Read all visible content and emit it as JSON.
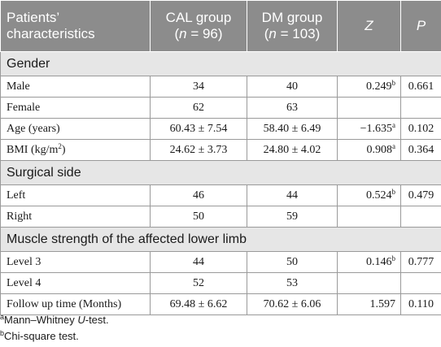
{
  "header": {
    "characteristics": "Patients’ characteristics",
    "cal_group": "CAL group",
    "cal_n_prefix": "(",
    "cal_n_var": "n",
    "cal_n_value": " = 96)",
    "dm_group": "DM group",
    "dm_n_prefix": "(",
    "dm_n_var": "n",
    "dm_n_value": " = 103)",
    "z": "Z",
    "p": "P"
  },
  "sections": {
    "gender": "Gender",
    "surgical_side": "Surgical side",
    "muscle_strength": "Muscle strength of the affected lower limb"
  },
  "rows": {
    "male": {
      "label": "Male",
      "cal": "34",
      "dm": "40",
      "z": "0.249",
      "z_sup": "b",
      "p": "0.661"
    },
    "female": {
      "label": "Female",
      "cal": "62",
      "dm": "63",
      "z": "",
      "z_sup": "",
      "p": ""
    },
    "age": {
      "label": "Age (years)",
      "cal": "60.43 ± 7.54",
      "dm": "58.40 ± 6.49",
      "z": "−1.635",
      "z_sup": "a",
      "p": "0.102"
    },
    "bmi": {
      "label_main": "BMI (kg/m",
      "label_sup": "2",
      "label_end": ")",
      "cal": "24.62 ± 3.73",
      "dm": "24.80 ± 4.02",
      "z": "0.908",
      "z_sup": "a",
      "p": "0.364"
    },
    "left": {
      "label": "Left",
      "cal": "46",
      "dm": "44",
      "z": "0.524",
      "z_sup": "b",
      "p": "0.479"
    },
    "right": {
      "label": "Right",
      "cal": "50",
      "dm": "59",
      "z": "",
      "z_sup": "",
      "p": ""
    },
    "level3": {
      "label": "Level 3",
      "cal": "44",
      "dm": "50",
      "z": "0.146",
      "z_sup": "b",
      "p": "0.777"
    },
    "level4": {
      "label": "Level 4",
      "cal": "52",
      "dm": "53",
      "z": "",
      "z_sup": "",
      "p": ""
    },
    "followup": {
      "label": "Follow up time (Months)",
      "cal": "69.48 ± 6.62",
      "dm": "70.62 ± 6.06",
      "z": "1.597",
      "z_sup": "",
      "p": "0.110"
    }
  },
  "footnotes": {
    "a_mark": "a",
    "a_text_pre": "Mann–Whitney ",
    "a_text_it": "U",
    "a_text_post": "-test.",
    "b_mark": "b",
    "b_text": "Chi-square test."
  }
}
